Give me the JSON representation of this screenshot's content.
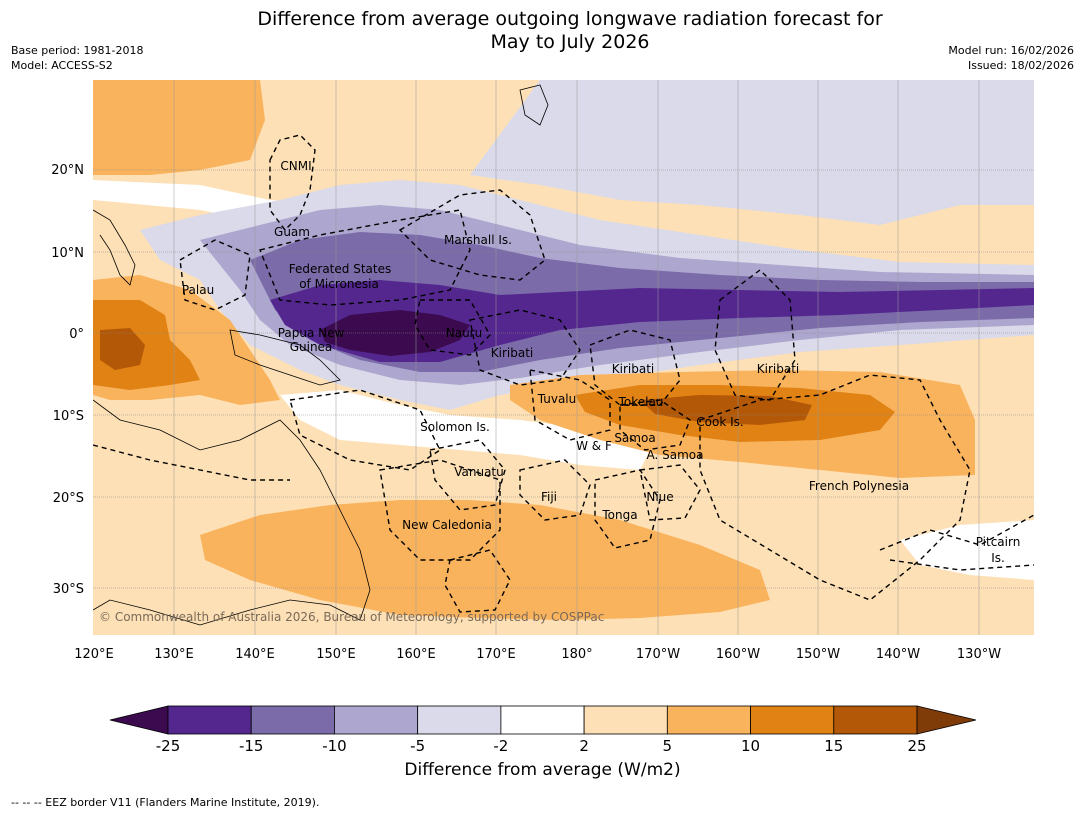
{
  "header": {
    "title_line1": "Difference from average outgoing longwave radiation forecast for",
    "title_line2": "May to July 2026",
    "base_period": "Base period: 1981-2018",
    "model": "Model: ACCESS-S2",
    "model_run": "Model run: 16/02/2026",
    "issued": "Issued: 18/02/2026"
  },
  "axes": {
    "lon_labels": [
      "120°E",
      "130°E",
      "140°E",
      "150°E",
      "160°E",
      "170°E",
      "180°",
      "170°W",
      "160°W",
      "150°W",
      "140°W",
      "130°W"
    ],
    "lat_labels": [
      "20°N",
      "10°N",
      "0°",
      "10°S",
      "20°S",
      "30°S"
    ]
  },
  "places": {
    "cnmi": "CNMI",
    "guam": "Guam",
    "marshall": "Marshall Is.",
    "fsm_1": "Federated States",
    "fsm_2": "of Micronesia",
    "palau": "Palau",
    "png_1": "Papua New",
    "png_2": "Guinea",
    "nauru": "Nauru",
    "kiribati_w": "Kiribati",
    "kiribati_c": "Kiribati",
    "kiribati_e": "Kiribati",
    "tuvalu": "Tuvalu",
    "tokelau": "Tokelau",
    "cook": "Cook Is.",
    "solomon": "Solomon Is.",
    "samoa": "Samoa",
    "wf": "W & F",
    "asamoa": "A. Samoa",
    "vanuatu": "Vanuatu",
    "fiji": "Fiji",
    "niue": "Niue",
    "tonga": "Tonga",
    "french_poly": "French Polynesia",
    "new_caledonia": "New Caledonia",
    "pitcairn_1": "Pitcairn",
    "pitcairn_2": "Is."
  },
  "copyright": "© Commonwealth of Australia 2026, Bureau of Meteorology, supported by COSPPac",
  "colorbar": {
    "title": "Difference from average (W/m2)",
    "ticks": [
      "-25",
      "-15",
      "-10",
      "-5",
      "-2",
      "2",
      "5",
      "10",
      "15",
      "25"
    ],
    "colors": [
      "#3b0a4f",
      "#54278f",
      "#7b6ba9",
      "#ada6cf",
      "#dadaea",
      "#ffffff",
      "#fde0b5",
      "#fab35d",
      "#e08214",
      "#b35806",
      "#7f3b08"
    ]
  },
  "footnote": "--  --  -- EEZ border V11 (Flanders Marine Institute, 2019)."
}
